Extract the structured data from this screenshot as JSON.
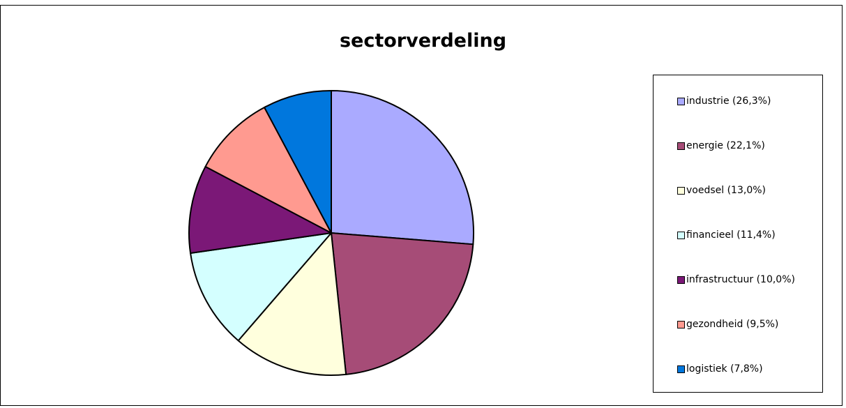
{
  "chart_data": {
    "type": "pie",
    "title": "sectorverdeling",
    "slices": [
      {
        "label": "industrie (26,3%)",
        "value": 26.3,
        "color": "#AAAAFF"
      },
      {
        "label": "energie (22,1%)",
        "value": 22.1,
        "color": "#A64C77"
      },
      {
        "label": "voedsel (13,0%)",
        "value": 13.0,
        "color": "#FFFFDD"
      },
      {
        "label": "financieel (11,4%)",
        "value": 11.4,
        "color": "#D4FFFF"
      },
      {
        "label": "infrastructuur (10,0%)",
        "value": 10.0,
        "color": "#7B1877"
      },
      {
        "label": "gezondheid (9,5%)",
        "value": 9.5,
        "color": "#FF9A90"
      },
      {
        "label": "logistiek (7,8%)",
        "value": 7.8,
        "color": "#0077DD"
      }
    ],
    "legend_position": "right"
  }
}
